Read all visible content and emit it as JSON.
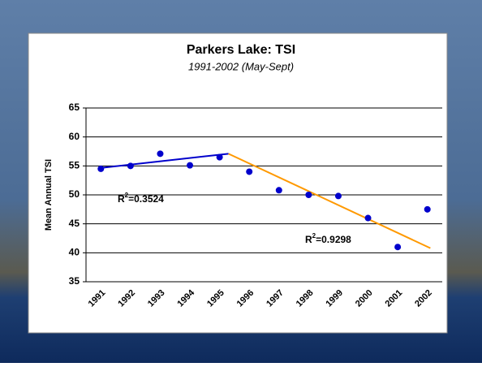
{
  "chart_data": {
    "type": "scatter",
    "title": "Parkers Lake: TSI",
    "subtitle": "1991-2002 (May-Sept)",
    "y_label": "Mean Annual TSI",
    "categories": [
      "1991",
      "1992",
      "1993",
      "1994",
      "1995",
      "1996",
      "1997",
      "1998",
      "1999",
      "2000",
      "2001",
      "2002"
    ],
    "values": [
      54.5,
      55,
      57.1,
      55.1,
      56.5,
      54,
      50.8,
      50,
      49.8,
      46,
      41,
      47.5
    ],
    "color": "#0000cc",
    "ylim": [
      35,
      65
    ],
    "yticks": [
      35,
      40,
      45,
      50,
      55,
      60,
      65
    ],
    "grid": true,
    "trendlines": [
      {
        "color": "#0000cc",
        "x": [
          1990.9,
          1995.3
        ],
        "values": [
          54.6,
          57.1
        ],
        "annotation": {
          "prefix": "R",
          "superscript": "2",
          "text": "=0.3524"
        }
      },
      {
        "color": "#ff9900",
        "x": [
          1995.3,
          2002.1
        ],
        "values": [
          57.1,
          40.8
        ],
        "annotation": {
          "prefix": "R",
          "superscript": "2",
          "text": "=0.9298"
        }
      }
    ]
  }
}
